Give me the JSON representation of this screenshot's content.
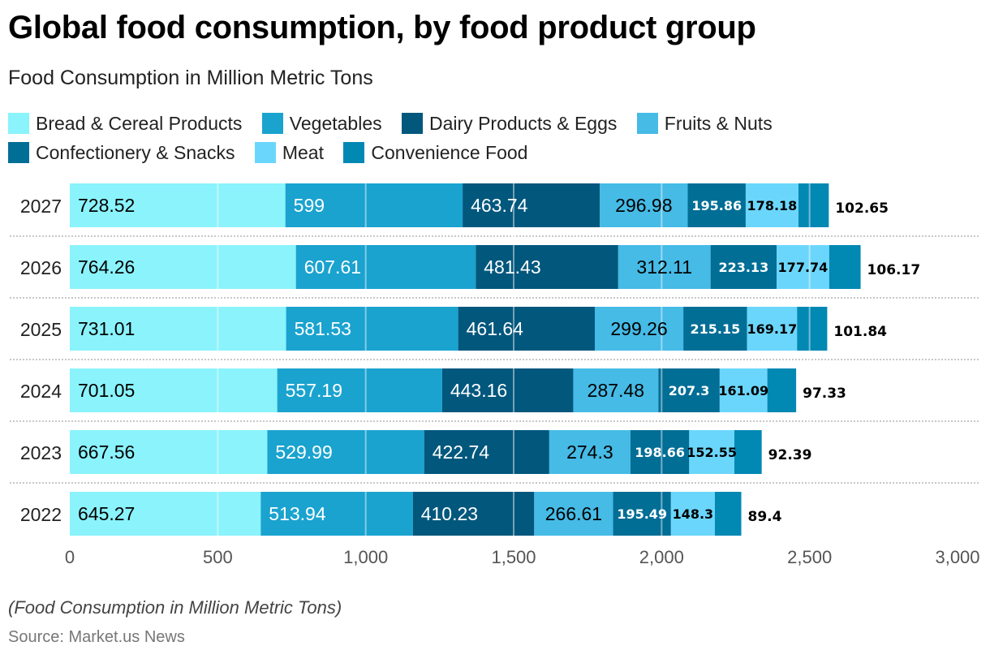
{
  "chart_data": {
    "type": "bar",
    "orientation": "horizontal",
    "stacked": true,
    "title": "Global food consumption, by food product group",
    "subtitle": "Food Consumption in Million Metric Tons",
    "xlabel": "",
    "ylabel": "",
    "xlim": [
      0,
      3000
    ],
    "xticks": [
      0,
      500,
      1000,
      1500,
      2000,
      2500,
      3000
    ],
    "xtick_labels": [
      "0",
      "500",
      "1,000",
      "1,500",
      "2,000",
      "2,500",
      "3,000"
    ],
    "grid": true,
    "legend_position": "top",
    "categories": [
      "2027",
      "2026",
      "2025",
      "2024",
      "2023",
      "2022"
    ],
    "series": [
      {
        "name": "Bread & Cereal Products",
        "color": "#8af3fc",
        "label_color": "#000000",
        "label_style": "regular",
        "values": [
          728.52,
          764.26,
          731.01,
          701.05,
          667.56,
          645.27
        ]
      },
      {
        "name": "Vegetables",
        "color": "#1aa3cf",
        "label_color": "#ffffff",
        "label_style": "regular",
        "values": [
          599,
          607.61,
          581.53,
          557.19,
          529.99,
          513.94
        ]
      },
      {
        "name": "Dairy Products & Eggs",
        "color": "#02577d",
        "label_color": "#ffffff",
        "label_style": "regular",
        "values": [
          463.74,
          481.43,
          461.64,
          443.16,
          422.74,
          410.23
        ]
      },
      {
        "name": "Fruits & Nuts",
        "color": "#45bbe6",
        "label_color": "#000000",
        "label_style": "regular",
        "values": [
          296.98,
          312.11,
          299.26,
          287.48,
          274.3,
          266.61
        ]
      },
      {
        "name": "Confectionery & Snacks",
        "color": "#016e96",
        "label_color": "#ffffff",
        "label_style": "bold",
        "values": [
          195.86,
          223.13,
          215.15,
          207.3,
          198.66,
          195.49
        ]
      },
      {
        "name": "Meat",
        "color": "#6bd6fc",
        "label_color": "#000000",
        "label_style": "bold",
        "values": [
          178.18,
          177.74,
          169.17,
          161.09,
          152.55,
          148.3
        ]
      },
      {
        "name": "Convenience Food",
        "color": "#0188b3",
        "label_color": "#000000",
        "label_style": "bold-outside",
        "values": [
          102.65,
          106.17,
          101.84,
          97.33,
          92.39,
          89.4
        ]
      }
    ]
  },
  "header": {
    "title": "Global food consumption, by food product group",
    "subtitle": "Food Consumption in Million Metric Tons"
  },
  "legend": {
    "items": [
      {
        "label": "Bread & Cereal Products",
        "color": "#8af3fc"
      },
      {
        "label": "Vegetables",
        "color": "#1aa3cf"
      },
      {
        "label": "Dairy Products & Eggs",
        "color": "#02577d"
      },
      {
        "label": "Fruits & Nuts",
        "color": "#45bbe6"
      },
      {
        "label": "Confectionery & Snacks",
        "color": "#016e96"
      },
      {
        "label": "Meat",
        "color": "#6bd6fc"
      },
      {
        "label": "Convenience Food",
        "color": "#0188b3"
      }
    ]
  },
  "footer": {
    "note": "(Food Consumption in Million Metric Tons)",
    "source": "Source: Market.us News"
  }
}
